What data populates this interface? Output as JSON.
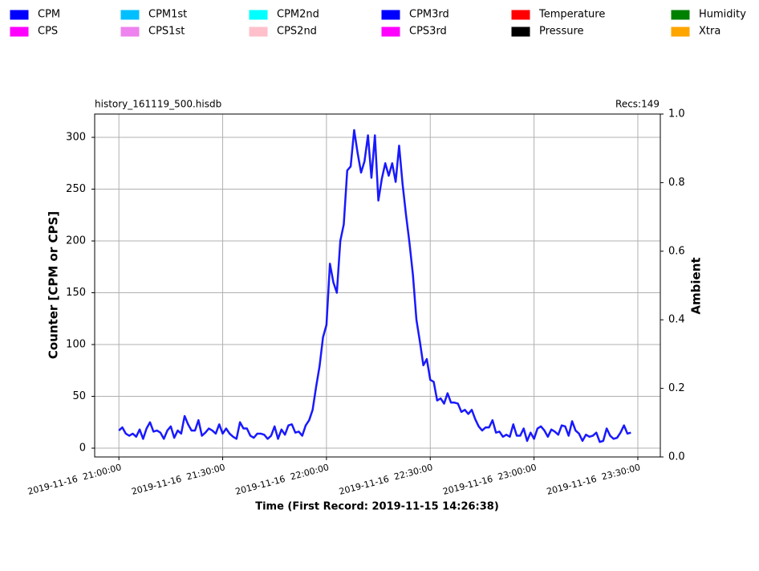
{
  "chart_data": {
    "type": "line",
    "file_label": "history_161119_500.hisdb",
    "records_label": "Recs:149",
    "ylabel": "Counter  [CPM or CPS]",
    "y2label": "Ambient",
    "xlabel": "Time (First Record: 2019-11-15 14:26:38)",
    "grid": true,
    "legend": "top",
    "xlim": [
      "2019-11-16 20:53:00",
      "2019-11-16 23:36:30"
    ],
    "xticks": [
      "2019-11-16  21:00:00",
      "2019-11-16  21:30:00",
      "2019-11-16  22:00:00",
      "2019-11-16  22:30:00",
      "2019-11-16  23:00:00",
      "2019-11-16  23:30:00"
    ],
    "ylim": [
      -8.5,
      322.5
    ],
    "yticks": [
      0,
      50,
      100,
      150,
      200,
      250,
      300
    ],
    "y2lim": [
      0,
      1
    ],
    "y2ticks": [
      {
        "value": 0,
        "label": "0.0"
      },
      {
        "value": 0.2,
        "label": "0.2"
      },
      {
        "value": 0.4,
        "label": "0.4"
      },
      {
        "value": 0.6,
        "label": "0.6"
      },
      {
        "value": 0.8,
        "label": "0.8"
      },
      {
        "value": 1,
        "label": "1.0"
      }
    ],
    "x": [
      "2019-11-16 21:00:00",
      "2019-11-16 21:01:00",
      "2019-11-16 21:02:00",
      "2019-11-16 21:03:00",
      "2019-11-16 21:04:00",
      "2019-11-16 21:05:00",
      "2019-11-16 21:06:00",
      "2019-11-16 21:07:00",
      "2019-11-16 21:08:00",
      "2019-11-16 21:09:00",
      "2019-11-16 21:10:00",
      "2019-11-16 21:11:00",
      "2019-11-16 21:12:00",
      "2019-11-16 21:13:00",
      "2019-11-16 21:14:00",
      "2019-11-16 21:15:00",
      "2019-11-16 21:16:00",
      "2019-11-16 21:17:00",
      "2019-11-16 21:18:00",
      "2019-11-16 21:19:00",
      "2019-11-16 21:20:00",
      "2019-11-16 21:21:00",
      "2019-11-16 21:22:00",
      "2019-11-16 21:23:00",
      "2019-11-16 21:24:00",
      "2019-11-16 21:25:00",
      "2019-11-16 21:26:00",
      "2019-11-16 21:27:00",
      "2019-11-16 21:28:00",
      "2019-11-16 21:29:00",
      "2019-11-16 21:30:00",
      "2019-11-16 21:31:00",
      "2019-11-16 21:32:00",
      "2019-11-16 21:33:00",
      "2019-11-16 21:34:00",
      "2019-11-16 21:35:00",
      "2019-11-16 21:36:00",
      "2019-11-16 21:37:00",
      "2019-11-16 21:38:00",
      "2019-11-16 21:39:00",
      "2019-11-16 21:40:00",
      "2019-11-16 21:41:00",
      "2019-11-16 21:42:00",
      "2019-11-16 21:43:00",
      "2019-11-16 21:44:00",
      "2019-11-16 21:45:00",
      "2019-11-16 21:46:00",
      "2019-11-16 21:47:00",
      "2019-11-16 21:48:00",
      "2019-11-16 21:49:00",
      "2019-11-16 21:50:00",
      "2019-11-16 21:51:00",
      "2019-11-16 21:52:00",
      "2019-11-16 21:53:00",
      "2019-11-16 21:54:00",
      "2019-11-16 21:55:00",
      "2019-11-16 21:56:00",
      "2019-11-16 21:57:00",
      "2019-11-16 21:58:00",
      "2019-11-16 21:59:00",
      "2019-11-16 22:00:00",
      "2019-11-16 22:01:00",
      "2019-11-16 22:02:00",
      "2019-11-16 22:03:00",
      "2019-11-16 22:04:00",
      "2019-11-16 22:05:00",
      "2019-11-16 22:06:00",
      "2019-11-16 22:07:00",
      "2019-11-16 22:08:00",
      "2019-11-16 22:09:00",
      "2019-11-16 22:10:00",
      "2019-11-16 22:11:00",
      "2019-11-16 22:12:00",
      "2019-11-16 22:13:00",
      "2019-11-16 22:14:00",
      "2019-11-16 22:15:00",
      "2019-11-16 22:16:00",
      "2019-11-16 22:17:00",
      "2019-11-16 22:18:00",
      "2019-11-16 22:19:00",
      "2019-11-16 22:20:00",
      "2019-11-16 22:21:00",
      "2019-11-16 22:22:00",
      "2019-11-16 22:23:00",
      "2019-11-16 22:24:00",
      "2019-11-16 22:25:00",
      "2019-11-16 22:26:00",
      "2019-11-16 22:27:00",
      "2019-11-16 22:28:00",
      "2019-11-16 22:29:00",
      "2019-11-16 22:30:00",
      "2019-11-16 22:31:00",
      "2019-11-16 22:32:00",
      "2019-11-16 22:33:00",
      "2019-11-16 22:34:00",
      "2019-11-16 22:35:00",
      "2019-11-16 22:36:00",
      "2019-11-16 22:37:00",
      "2019-11-16 22:38:00",
      "2019-11-16 22:39:00",
      "2019-11-16 22:40:00",
      "2019-11-16 22:41:00",
      "2019-11-16 22:42:00",
      "2019-11-16 22:43:00",
      "2019-11-16 22:44:00",
      "2019-11-16 22:45:00",
      "2019-11-16 22:46:00",
      "2019-11-16 22:47:00",
      "2019-11-16 22:48:00",
      "2019-11-16 22:49:00",
      "2019-11-16 22:50:00",
      "2019-11-16 22:51:00",
      "2019-11-16 22:52:00",
      "2019-11-16 22:53:00",
      "2019-11-16 22:54:00",
      "2019-11-16 22:55:00",
      "2019-11-16 22:56:00",
      "2019-11-16 22:57:00",
      "2019-11-16 22:58:00",
      "2019-11-16 22:59:00",
      "2019-11-16 23:00:00",
      "2019-11-16 23:01:00",
      "2019-11-16 23:02:00",
      "2019-11-16 23:03:00",
      "2019-11-16 23:04:00",
      "2019-11-16 23:05:00",
      "2019-11-16 23:06:00",
      "2019-11-16 23:07:00",
      "2019-11-16 23:08:00",
      "2019-11-16 23:09:00",
      "2019-11-16 23:10:00",
      "2019-11-16 23:11:00",
      "2019-11-16 23:12:00",
      "2019-11-16 23:13:00",
      "2019-11-16 23:14:00",
      "2019-11-16 23:15:00",
      "2019-11-16 23:16:00",
      "2019-11-16 23:17:00",
      "2019-11-16 23:18:00",
      "2019-11-16 23:19:00",
      "2019-11-16 23:20:00",
      "2019-11-16 23:21:00",
      "2019-11-16 23:22:00",
      "2019-11-16 23:23:00",
      "2019-11-16 23:24:00",
      "2019-11-16 23:25:00",
      "2019-11-16 23:26:00",
      "2019-11-16 23:27:00",
      "2019-11-16 23:28:00"
    ],
    "series": [
      {
        "name": "CPM",
        "color": "#0000ff"
      },
      {
        "name": "CPS",
        "color": "#ff00ff"
      },
      {
        "name": "CPM1st",
        "color": "#00bfff"
      },
      {
        "name": "CPS1st",
        "color": "#ee82ee"
      },
      {
        "name": "CPM2nd",
        "color": "#00ffff"
      },
      {
        "name": "CPS2nd",
        "color": "#ffc0cb"
      },
      {
        "name": "CPM3rd",
        "color": "#0000ff",
        "values": [
          17,
          20,
          14,
          12,
          14,
          11,
          18,
          9,
          19,
          25,
          16,
          17,
          15,
          9,
          17,
          21,
          10,
          17,
          14,
          31,
          23,
          17,
          17,
          27,
          12,
          15,
          19,
          17,
          14,
          23,
          14,
          19,
          14,
          11,
          9,
          25,
          19,
          19,
          12,
          10,
          14,
          14,
          13,
          9,
          12,
          21,
          9,
          18,
          13,
          22,
          23,
          15,
          16,
          12,
          22,
          27,
          37,
          59,
          79,
          107,
          119,
          178,
          160,
          150,
          200,
          216,
          268,
          272,
          307,
          285,
          266,
          277,
          302,
          261,
          302,
          239,
          260,
          275,
          263,
          275,
          257,
          292,
          255,
          225,
          198,
          167,
          124,
          103,
          80,
          86,
          66,
          64,
          46,
          48,
          43,
          53,
          44,
          44,
          43,
          35,
          37,
          33,
          37,
          28,
          21,
          17,
          20,
          20,
          27,
          15,
          16,
          11,
          13,
          11,
          23,
          12,
          12,
          19,
          7,
          15,
          9,
          19,
          21,
          17,
          11,
          18,
          16,
          13,
          22,
          21,
          12,
          26,
          17,
          14,
          7,
          13,
          11,
          12,
          15,
          6,
          7,
          19,
          12,
          9,
          10,
          15,
          22,
          14,
          15
        ]
      },
      {
        "name": "CPS3rd",
        "color": "#ff00ff"
      },
      {
        "name": "Temperature",
        "color": "#ff0000"
      },
      {
        "name": "Pressure",
        "color": "#000000"
      },
      {
        "name": "Humidity",
        "color": "#008000"
      },
      {
        "name": "Xtra",
        "color": "#ffa500"
      }
    ]
  }
}
